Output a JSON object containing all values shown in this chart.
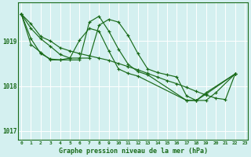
{
  "background_color": "#d4f0f0",
  "grid_color": "#ffffff",
  "line_color": "#1a6b1a",
  "title": "Graphe pression niveau de la mer (hPa)",
  "xlabel_ticks": [
    "0",
    "1",
    "2",
    "3",
    "4",
    "5",
    "6",
    "7",
    "8",
    "9",
    "10",
    "11",
    "12",
    "13",
    "14",
    "15",
    "16",
    "17",
    "18",
    "19",
    "20",
    "21",
    "22",
    "23"
  ],
  "yticks": [
    1017,
    1018,
    1019
  ],
  "ylim": [
    1016.8,
    1019.85
  ],
  "xlim": [
    -0.3,
    23.3
  ],
  "series": [
    [
      1019.6,
      1019.38,
      1019.1,
      1019.0,
      1018.85,
      1018.78,
      1018.72,
      1018.67,
      1018.62,
      1018.57,
      1018.5,
      1018.43,
      1018.36,
      1018.28,
      1018.2,
      1018.12,
      1018.05,
      1017.97,
      1017.88,
      1017.8,
      1017.73,
      1017.7,
      1018.27
    ],
    [
      1019.6,
      1019.28,
      1019.05,
      1018.88,
      1018.7,
      1018.62,
      1018.62,
      1018.62,
      1019.35,
      1019.48,
      1019.42,
      1019.12,
      1018.72,
      1018.38,
      1018.3,
      1018.25,
      1018.2,
      1017.78,
      1017.68,
      1017.68,
      1017.85,
      1018.27
    ],
    [
      1019.6,
      1019.05,
      1018.72,
      1018.6,
      1018.58,
      1018.58,
      1018.58,
      1019.42,
      1019.55,
      1019.22,
      1018.82,
      1018.48,
      1018.32,
      1018.25,
      1017.68,
      1017.68,
      1017.82,
      1018.27
    ],
    [
      1019.6,
      1018.92,
      1018.75,
      1018.58,
      1018.58,
      1018.62,
      1019.02,
      1019.28,
      1019.22,
      1018.78,
      1018.38,
      1018.28,
      1018.22,
      1017.68,
      1017.68,
      1017.85,
      1018.27
    ]
  ],
  "series_x": [
    [
      0,
      1,
      2,
      3,
      4,
      5,
      6,
      7,
      8,
      9,
      10,
      11,
      12,
      13,
      14,
      15,
      16,
      17,
      18,
      19,
      20,
      21,
      22
    ],
    [
      0,
      1,
      2,
      3,
      4,
      5,
      6,
      7,
      8,
      9,
      10,
      11,
      12,
      13,
      14,
      15,
      16,
      17,
      18,
      19,
      20,
      22
    ],
    [
      0,
      1,
      2,
      3,
      4,
      5,
      6,
      7,
      8,
      9,
      10,
      11,
      12,
      13,
      17,
      18,
      19,
      22
    ],
    [
      0,
      1,
      2,
      3,
      4,
      5,
      6,
      7,
      8,
      9,
      10,
      11,
      12,
      17,
      18,
      19,
      22
    ]
  ]
}
